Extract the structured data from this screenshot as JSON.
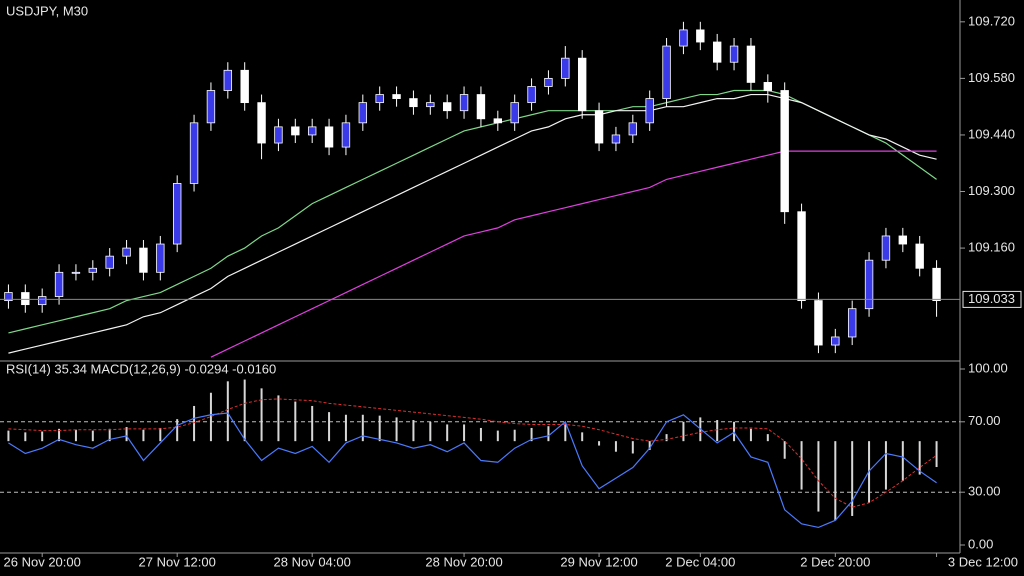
{
  "chart_data": [
    {
      "type": "candlestick",
      "title": "USDJPY, M30",
      "categories": [
        null,
        null,
        "26 Nov 20:00",
        null,
        null,
        null,
        null,
        null,
        null,
        null,
        "27 Nov 12:00",
        null,
        null,
        null,
        null,
        null,
        null,
        null,
        "28 Nov 04:00",
        null,
        null,
        null,
        null,
        null,
        null,
        null,
        null,
        "28 Nov 20:00",
        null,
        null,
        null,
        null,
        null,
        null,
        null,
        "29 Nov 12:00",
        null,
        null,
        null,
        null,
        null,
        "2 Dec 04:00",
        null,
        null,
        null,
        null,
        null,
        null,
        null,
        "2 Dec 20:00",
        null,
        null,
        null,
        null,
        null,
        "3 Dec 12:00"
      ],
      "open": [
        109.03,
        109.05,
        109.02,
        109.04,
        109.1,
        109.1,
        109.11,
        109.14,
        109.16,
        109.1,
        109.17,
        109.32,
        109.47,
        109.55,
        109.6,
        109.52,
        109.42,
        109.46,
        109.44,
        109.46,
        109.41,
        109.47,
        109.52,
        109.54,
        109.53,
        109.51,
        109.52,
        109.5,
        109.54,
        109.48,
        109.47,
        109.52,
        109.56,
        109.58,
        109.63,
        109.5,
        109.42,
        109.44,
        109.47,
        109.53,
        109.66,
        109.7,
        109.67,
        109.62,
        109.66,
        109.57,
        109.55,
        109.25,
        109.03,
        108.92,
        108.94,
        109.01,
        109.13,
        109.19,
        109.17,
        109.11
      ],
      "high": [
        109.07,
        109.07,
        109.06,
        109.12,
        109.12,
        109.13,
        109.16,
        109.18,
        109.18,
        109.19,
        109.34,
        109.49,
        109.57,
        109.62,
        109.62,
        109.54,
        109.48,
        109.48,
        109.48,
        109.48,
        109.49,
        109.54,
        109.56,
        109.56,
        109.55,
        109.54,
        109.54,
        109.56,
        109.56,
        109.5,
        109.54,
        109.58,
        109.6,
        109.66,
        109.65,
        109.52,
        109.46,
        109.49,
        109.55,
        109.68,
        109.72,
        109.72,
        109.69,
        109.68,
        109.68,
        109.59,
        109.57,
        109.27,
        109.05,
        108.96,
        109.03,
        109.15,
        109.21,
        109.21,
        109.19,
        109.13
      ],
      "low": [
        109.01,
        109.0,
        109.0,
        109.02,
        109.08,
        109.08,
        109.09,
        109.12,
        109.08,
        109.08,
        109.15,
        109.3,
        109.45,
        109.53,
        109.5,
        109.38,
        109.4,
        109.42,
        109.42,
        109.39,
        109.39,
        109.45,
        109.5,
        109.51,
        109.49,
        109.49,
        109.48,
        109.48,
        109.46,
        109.45,
        109.45,
        109.5,
        109.54,
        109.56,
        109.48,
        109.4,
        109.4,
        109.42,
        109.45,
        109.51,
        109.64,
        109.65,
        109.6,
        109.6,
        109.55,
        109.52,
        109.22,
        109.01,
        108.9,
        108.9,
        108.92,
        108.99,
        109.11,
        109.15,
        109.09,
        108.99
      ],
      "close": [
        109.05,
        109.02,
        109.04,
        109.1,
        109.1,
        109.11,
        109.14,
        109.16,
        109.1,
        109.17,
        109.32,
        109.47,
        109.55,
        109.6,
        109.52,
        109.42,
        109.46,
        109.44,
        109.46,
        109.41,
        109.47,
        109.52,
        109.54,
        109.53,
        109.51,
        109.52,
        109.5,
        109.54,
        109.48,
        109.47,
        109.52,
        109.56,
        109.58,
        109.63,
        109.5,
        109.42,
        109.44,
        109.47,
        109.53,
        109.66,
        109.7,
        109.67,
        109.62,
        109.66,
        109.57,
        109.55,
        109.25,
        109.03,
        108.92,
        108.94,
        109.01,
        109.13,
        109.19,
        109.17,
        109.11,
        109.03
      ],
      "up_color": "#3a3ae8",
      "down_color": "#ffffff",
      "wick_color": "#ffffff",
      "overlays": [
        {
          "color": "#7fd88a",
          "values": [
            108.95,
            108.96,
            108.97,
            108.98,
            108.99,
            109.0,
            109.01,
            109.03,
            109.04,
            109.05,
            109.07,
            109.09,
            109.11,
            109.14,
            109.16,
            109.19,
            109.21,
            109.24,
            109.27,
            109.29,
            109.31,
            109.33,
            109.35,
            109.37,
            109.39,
            109.41,
            109.43,
            109.45,
            109.46,
            109.47,
            109.48,
            109.49,
            109.5,
            109.5,
            109.5,
            109.5,
            109.5,
            109.51,
            109.51,
            109.52,
            109.53,
            109.54,
            109.54,
            109.55,
            109.55,
            109.55,
            109.54,
            109.52,
            109.5,
            109.48,
            109.46,
            109.44,
            109.42,
            109.39,
            109.36,
            109.33
          ]
        },
        {
          "color": "#f2f2f2",
          "values": [
            108.9,
            108.91,
            108.92,
            108.93,
            108.94,
            108.95,
            108.96,
            108.97,
            108.99,
            109.0,
            109.02,
            109.04,
            109.06,
            109.09,
            109.11,
            109.13,
            109.15,
            109.17,
            109.19,
            109.21,
            109.23,
            109.25,
            109.27,
            109.29,
            109.31,
            109.33,
            109.35,
            109.37,
            109.39,
            109.41,
            109.43,
            109.45,
            109.46,
            109.48,
            109.49,
            109.49,
            109.5,
            109.5,
            109.5,
            109.51,
            109.51,
            109.52,
            109.53,
            109.53,
            109.54,
            109.54,
            109.53,
            109.52,
            109.5,
            109.48,
            109.46,
            109.44,
            109.43,
            109.41,
            109.39,
            109.38
          ]
        },
        {
          "color": "#e040e0",
          "values": [
            null,
            null,
            null,
            null,
            null,
            null,
            null,
            null,
            null,
            null,
            null,
            null,
            108.89,
            108.91,
            108.93,
            108.95,
            108.97,
            108.99,
            109.01,
            109.03,
            109.05,
            109.07,
            109.09,
            109.11,
            109.13,
            109.15,
            109.17,
            109.19,
            109.2,
            109.21,
            109.23,
            109.24,
            109.25,
            109.26,
            109.27,
            109.28,
            109.29,
            109.3,
            109.31,
            109.33,
            109.34,
            109.35,
            109.36,
            109.37,
            109.38,
            109.39,
            109.4,
            109.4,
            109.4,
            109.4,
            109.4,
            109.4,
            109.4,
            109.4,
            109.4,
            109.4
          ]
        }
      ],
      "last_price": {
        "value": 109.033,
        "label": "109.033"
      },
      "last_price_color": "#8a8a8a",
      "ylim": [
        108.883,
        109.774
      ],
      "yticks": [
        {
          "value": 109.72,
          "label": "109.720"
        },
        {
          "value": 109.58,
          "label": "109.580"
        },
        {
          "value": 109.44,
          "label": "109.440"
        },
        {
          "value": 109.3,
          "label": "109.300"
        },
        {
          "value": 109.16,
          "label": "109.160"
        }
      ]
    },
    {
      "type": "indicator",
      "title": "RSI(14) 35.34 MACD(12,26,9) -0.0294 -0.0160",
      "ylim": [
        0,
        100
      ],
      "yticks": [
        {
          "value": 100,
          "label": "100.00"
        },
        {
          "value": 70,
          "label": "70.00"
        },
        {
          "value": 30,
          "label": "30.00"
        },
        {
          "value": 0,
          "label": "0.00"
        }
      ],
      "y2lim": [
        -0.118,
        0.082
      ],
      "rsi": {
        "color": "#4a7bff",
        "values": [
          58,
          52,
          55,
          60,
          57,
          55,
          60,
          62,
          48,
          58,
          68,
          72,
          74,
          75,
          60,
          48,
          55,
          52,
          56,
          47,
          58,
          62,
          60,
          58,
          55,
          57,
          53,
          58,
          48,
          47,
          55,
          60,
          62,
          70,
          45,
          32,
          38,
          44,
          55,
          70,
          74,
          66,
          58,
          64,
          50,
          47,
          20,
          12,
          10,
          14,
          25,
          42,
          52,
          50,
          42,
          35.34
        ]
      },
      "macd": {
        "color": "#d8d8d8",
        "axis": "y2",
        "values": [
          0.012,
          0.01,
          0.011,
          0.014,
          0.013,
          0.012,
          0.014,
          0.016,
          0.013,
          0.015,
          0.025,
          0.04,
          0.055,
          0.068,
          0.07,
          0.06,
          0.052,
          0.045,
          0.04,
          0.033,
          0.03,
          0.03,
          0.029,
          0.027,
          0.024,
          0.022,
          0.019,
          0.019,
          0.015,
          0.012,
          0.013,
          0.015,
          0.017,
          0.02,
          0.01,
          -0.005,
          -0.012,
          -0.014,
          -0.01,
          0.008,
          0.022,
          0.027,
          0.024,
          0.022,
          0.014,
          0.008,
          -0.02,
          -0.055,
          -0.08,
          -0.09,
          -0.085,
          -0.07,
          -0.055,
          -0.045,
          -0.038,
          -0.0294
        ]
      },
      "signal": {
        "color": "#e03030",
        "axis": "y2",
        "values": [
          0.014,
          0.013,
          0.012,
          0.012,
          0.013,
          0.013,
          0.013,
          0.014,
          0.014,
          0.014,
          0.016,
          0.021,
          0.028,
          0.036,
          0.043,
          0.047,
          0.048,
          0.047,
          0.046,
          0.043,
          0.041,
          0.039,
          0.037,
          0.035,
          0.033,
          0.031,
          0.029,
          0.027,
          0.025,
          0.022,
          0.02,
          0.019,
          0.019,
          0.019,
          0.017,
          0.013,
          0.008,
          0.003,
          0.0,
          0.002,
          0.006,
          0.01,
          0.013,
          0.015,
          0.015,
          0.014,
          0.0,
          -0.02,
          -0.045,
          -0.065,
          -0.075,
          -0.07,
          -0.058,
          -0.045,
          -0.03,
          -0.016
        ]
      }
    }
  ]
}
